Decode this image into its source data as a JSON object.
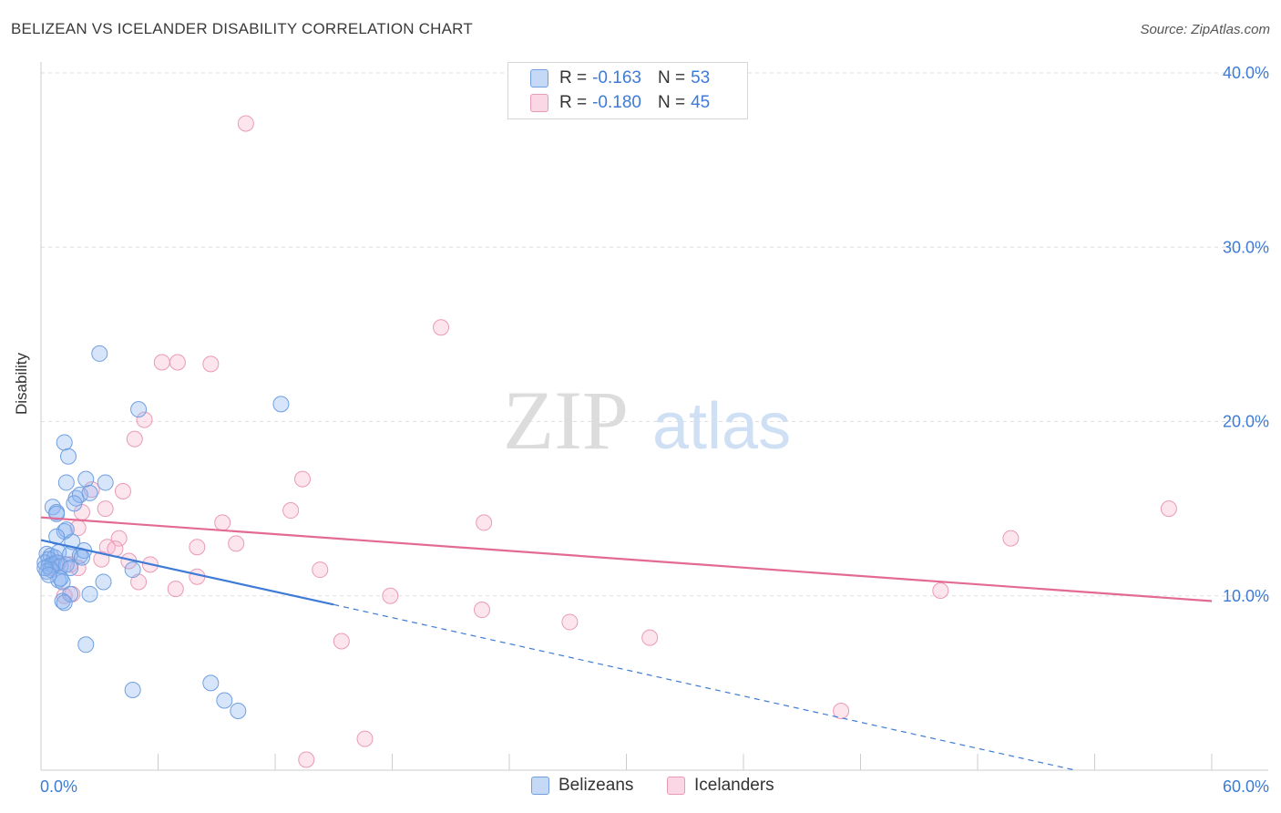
{
  "header": {
    "title": "BELIZEAN VS ICELANDER DISABILITY CORRELATION CHART",
    "source": "Source: ZipAtlas.com"
  },
  "colors": {
    "blue": "#3d7bd6",
    "blue_fill": "rgba(140,180,240,0.35)",
    "blue_stroke": "#6f9fe0",
    "pink": "#e26a95",
    "pink_fill": "rgba(248,180,205,0.35)",
    "pink_stroke": "#ea9ab6"
  },
  "legend_top": {
    "rows": [
      {
        "r_label": "R =",
        "r_value": "-0.163",
        "n_label": "N =",
        "n_value": "53"
      },
      {
        "r_label": "R =",
        "r_value": "-0.180",
        "n_label": "N =",
        "n_value": "45"
      }
    ]
  },
  "legend_bottom": {
    "items": [
      "Belizeans",
      "Icelanders"
    ]
  },
  "watermark": {
    "zip": "ZIP",
    "atlas": "atlas"
  },
  "chart_data": {
    "type": "scatter",
    "title": "BELIZEAN VS ICELANDER DISABILITY CORRELATION CHART",
    "xlabel": "",
    "ylabel": "Disability",
    "xlim": [
      0,
      60
    ],
    "ylim": [
      0,
      40
    ],
    "x_tick_labels": [
      "0.0%",
      "60.0%"
    ],
    "y_ticks": [
      10,
      20,
      30,
      40
    ],
    "y_tick_labels": [
      "10.0%",
      "20.0%",
      "30.0%",
      "40.0%"
    ],
    "grid": true,
    "series": [
      {
        "name": "Belizeans",
        "r": -0.163,
        "n": 53,
        "points": [
          [
            3.0,
            23.9
          ],
          [
            5.0,
            20.7
          ],
          [
            12.3,
            21.0
          ],
          [
            1.2,
            18.8
          ],
          [
            1.4,
            18.0
          ],
          [
            1.3,
            16.5
          ],
          [
            2.3,
            16.7
          ],
          [
            3.3,
            16.5
          ],
          [
            1.8,
            15.6
          ],
          [
            2.0,
            15.8
          ],
          [
            2.5,
            15.9
          ],
          [
            0.6,
            15.1
          ],
          [
            0.8,
            14.8
          ],
          [
            0.8,
            14.7
          ],
          [
            1.7,
            15.3
          ],
          [
            1.2,
            13.7
          ],
          [
            1.3,
            13.8
          ],
          [
            0.8,
            13.4
          ],
          [
            1.6,
            13.1
          ],
          [
            0.3,
            12.4
          ],
          [
            0.5,
            12.3
          ],
          [
            0.7,
            12.2
          ],
          [
            0.9,
            12.5
          ],
          [
            1.5,
            12.4
          ],
          [
            2.0,
            12.3
          ],
          [
            2.2,
            12.6
          ],
          [
            2.1,
            12.2
          ],
          [
            0.4,
            12.1
          ],
          [
            0.2,
            11.9
          ],
          [
            0.4,
            11.7
          ],
          [
            0.6,
            11.8
          ],
          [
            0.8,
            11.9
          ],
          [
            1.0,
            11.7
          ],
          [
            1.3,
            11.8
          ],
          [
            1.5,
            11.6
          ],
          [
            0.3,
            11.4
          ],
          [
            0.5,
            11.5
          ],
          [
            0.2,
            11.6
          ],
          [
            4.7,
            11.5
          ],
          [
            0.9,
            10.9
          ],
          [
            1.1,
            10.8
          ],
          [
            1.0,
            11.0
          ],
          [
            3.2,
            10.8
          ],
          [
            1.5,
            10.1
          ],
          [
            2.5,
            10.1
          ],
          [
            1.1,
            9.7
          ],
          [
            1.2,
            9.6
          ],
          [
            2.3,
            7.2
          ],
          [
            4.7,
            4.6
          ],
          [
            8.7,
            5.0
          ],
          [
            9.4,
            4.0
          ],
          [
            10.1,
            3.4
          ],
          [
            0.4,
            11.2
          ]
        ],
        "trend": {
          "x": [
            0,
            15
          ],
          "y": [
            13.2,
            9.5
          ],
          "dashed_to": [
            53,
            0
          ]
        }
      },
      {
        "name": "Icelanders",
        "r": -0.18,
        "n": 45,
        "points": [
          [
            10.5,
            37.1
          ],
          [
            20.5,
            25.4
          ],
          [
            6.2,
            23.4
          ],
          [
            7.0,
            23.4
          ],
          [
            8.7,
            23.3
          ],
          [
            5.3,
            20.1
          ],
          [
            4.8,
            19.0
          ],
          [
            13.4,
            16.7
          ],
          [
            2.6,
            16.1
          ],
          [
            4.2,
            16.0
          ],
          [
            12.8,
            14.9
          ],
          [
            3.3,
            15.0
          ],
          [
            2.1,
            14.8
          ],
          [
            57.8,
            15.0
          ],
          [
            22.7,
            14.2
          ],
          [
            9.3,
            14.2
          ],
          [
            1.9,
            13.9
          ],
          [
            49.7,
            13.3
          ],
          [
            4.0,
            13.3
          ],
          [
            10.0,
            13.0
          ],
          [
            3.4,
            12.8
          ],
          [
            3.8,
            12.7
          ],
          [
            8.0,
            12.8
          ],
          [
            3.1,
            12.1
          ],
          [
            4.5,
            12.0
          ],
          [
            5.6,
            11.8
          ],
          [
            1.5,
            11.8
          ],
          [
            1.9,
            11.6
          ],
          [
            14.3,
            11.5
          ],
          [
            8.0,
            11.1
          ],
          [
            5.0,
            10.8
          ],
          [
            6.9,
            10.4
          ],
          [
            1.2,
            10.0
          ],
          [
            1.6,
            10.1
          ],
          [
            17.9,
            10.0
          ],
          [
            46.1,
            10.3
          ],
          [
            22.6,
            9.2
          ],
          [
            27.1,
            8.5
          ],
          [
            31.2,
            7.6
          ],
          [
            15.4,
            7.4
          ],
          [
            41.0,
            3.4
          ],
          [
            16.6,
            1.8
          ],
          [
            13.6,
            0.6
          ],
          [
            0.5,
            11.6
          ],
          [
            0.9,
            11.9
          ]
        ],
        "trend": {
          "x": [
            0,
            60
          ],
          "y": [
            14.5,
            9.7
          ]
        }
      }
    ]
  }
}
